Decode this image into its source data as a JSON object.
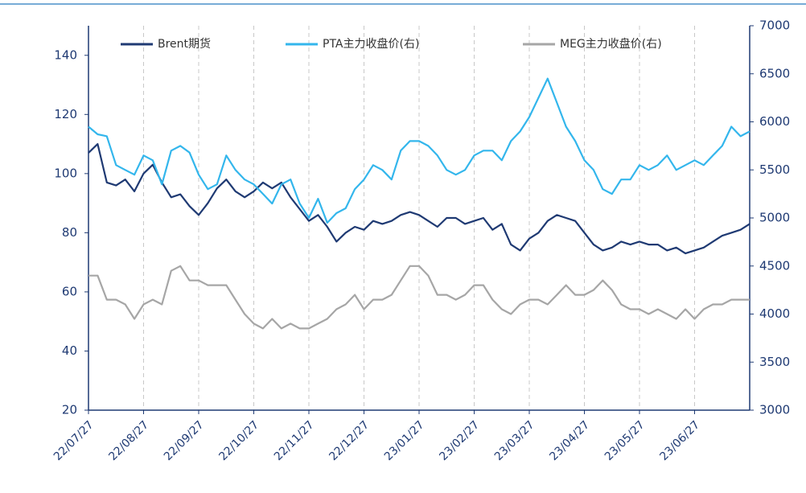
{
  "chart_data": {
    "type": "line",
    "categories": [
      "22/07/27",
      null,
      null,
      null,
      null,
      null,
      "22/08/27",
      null,
      null,
      null,
      null,
      null,
      "22/09/27",
      null,
      null,
      null,
      null,
      null,
      "22/10/27",
      null,
      null,
      null,
      null,
      null,
      "22/11/27",
      null,
      null,
      null,
      null,
      null,
      "22/12/27",
      null,
      null,
      null,
      null,
      null,
      "23/01/27",
      null,
      null,
      null,
      null,
      null,
      "23/02/27",
      null,
      null,
      null,
      null,
      null,
      "23/03/27",
      null,
      null,
      null,
      null,
      null,
      "23/04/27",
      null,
      null,
      null,
      null,
      null,
      "23/05/27",
      null,
      null,
      null,
      null,
      null,
      "23/06/27",
      null,
      null,
      null,
      null,
      null,
      null
    ],
    "series": [
      {
        "name": "Brent期货",
        "color": "#1f3a73",
        "axis": "y",
        "values": [
          107,
          110,
          97,
          96,
          98,
          94,
          100,
          103,
          97,
          92,
          93,
          89,
          86,
          90,
          95,
          98,
          94,
          92,
          94,
          97,
          95,
          97,
          92,
          88,
          84,
          86,
          82,
          77,
          80,
          82,
          81,
          84,
          83,
          84,
          86,
          87,
          86,
          84,
          82,
          85,
          85,
          83,
          84,
          85,
          81,
          83,
          76,
          74,
          78,
          80,
          84,
          86,
          85,
          84,
          80,
          76,
          74,
          75,
          77,
          76,
          77,
          76,
          76,
          74,
          75,
          73,
          74,
          75,
          77,
          79,
          80,
          81,
          83
        ]
      },
      {
        "name": "PTA主力收盘价(右)",
        "color": "#33b6ec",
        "axis": "y2",
        "values": [
          5950,
          5870,
          5850,
          5550,
          5500,
          5450,
          5650,
          5600,
          5350,
          5700,
          5750,
          5680,
          5450,
          5300,
          5350,
          5650,
          5500,
          5400,
          5350,
          5250,
          5150,
          5350,
          5400,
          5150,
          5000,
          5200,
          4950,
          5050,
          5100,
          5300,
          5400,
          5550,
          5500,
          5400,
          5700,
          5800,
          5800,
          5750,
          5650,
          5500,
          5450,
          5500,
          5650,
          5700,
          5700,
          5600,
          5800,
          5900,
          6050,
          6250,
          6450,
          6200,
          5950,
          5800,
          5600,
          5500,
          5300,
          5250,
          5400,
          5400,
          5550,
          5500,
          5550,
          5650,
          5500,
          5550,
          5600,
          5550,
          5650,
          5750,
          5950,
          5850,
          5900
        ]
      },
      {
        "name": "MEG主力收盘价(右)",
        "color": "#a6a6a6",
        "axis": "y2",
        "values": [
          4400,
          4400,
          4150,
          4150,
          4100,
          3950,
          4100,
          4150,
          4100,
          4450,
          4500,
          4350,
          4350,
          4300,
          4300,
          4300,
          4150,
          4000,
          3900,
          3850,
          3950,
          3850,
          3900,
          3850,
          3850,
          3900,
          3950,
          4050,
          4100,
          4200,
          4050,
          4150,
          4150,
          4200,
          4350,
          4500,
          4500,
          4400,
          4200,
          4200,
          4150,
          4200,
          4300,
          4300,
          4150,
          4050,
          4000,
          4100,
          4150,
          4150,
          4100,
          4200,
          4300,
          4200,
          4200,
          4250,
          4350,
          4250,
          4100,
          4050,
          4050,
          4000,
          4050,
          4000,
          3950,
          4050,
          3950,
          4050,
          4100,
          4100,
          4150,
          4150,
          4150
        ]
      }
    ],
    "ylim": [
      20,
      150
    ],
    "yticks": [
      20,
      40,
      60,
      80,
      100,
      120,
      140
    ],
    "y2lim": [
      3000,
      7000
    ],
    "y2ticks": [
      3000,
      3500,
      4000,
      4500,
      5000,
      5500,
      6000,
      6500,
      7000
    ],
    "grid": true,
    "legend": "top"
  }
}
